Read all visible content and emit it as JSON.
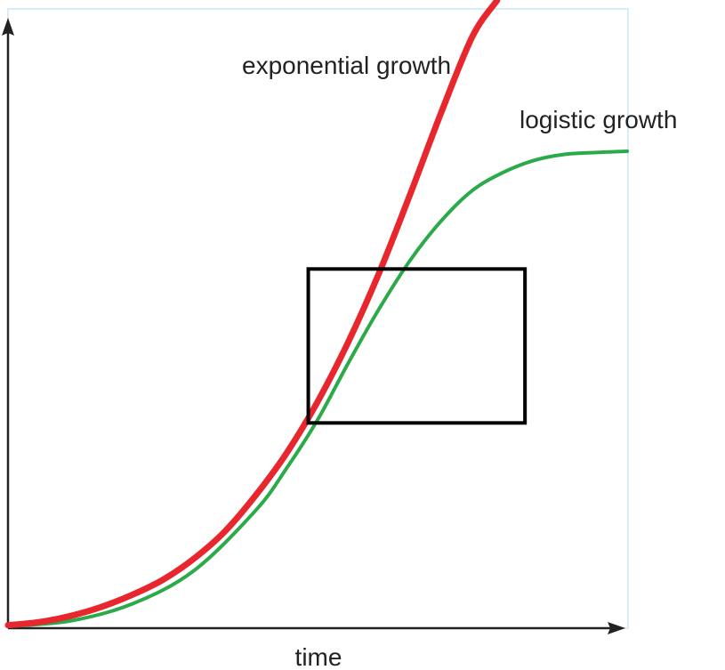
{
  "chart_data": {
    "type": "line",
    "title": "",
    "xlabel": "time",
    "ylabel": "",
    "xlim": [
      0,
      10
    ],
    "ylim": [
      0,
      10
    ],
    "grid": false,
    "legend": "none",
    "series": [
      {
        "name": "exponential growth",
        "color": "#e8262d",
        "x": [
          0,
          0.5,
          1,
          1.5,
          2,
          2.5,
          3,
          3.5,
          4,
          4.5,
          5,
          5.5,
          6,
          6.5,
          7,
          7.5,
          7.9
        ],
        "y": [
          0.05,
          0.1,
          0.2,
          0.35,
          0.55,
          0.8,
          1.15,
          1.6,
          2.2,
          2.9,
          3.75,
          4.75,
          5.9,
          7.2,
          8.55,
          9.8,
          10.4
        ]
      },
      {
        "name": "logistic growth",
        "color": "#2baa4a",
        "x": [
          0,
          1,
          2,
          3,
          4,
          4.5,
          5,
          5.5,
          6,
          6.5,
          7,
          7.5,
          8,
          8.5,
          9,
          9.5,
          10
        ],
        "y": [
          0.03,
          0.12,
          0.4,
          0.95,
          1.95,
          2.65,
          3.45,
          4.4,
          5.3,
          6.1,
          6.75,
          7.25,
          7.55,
          7.75,
          7.85,
          7.88,
          7.9
        ]
      }
    ],
    "box": {
      "x0": 4.85,
      "x1": 8.35,
      "y0": 3.4,
      "y1": 5.95
    }
  },
  "colors": {
    "axis": "#222222",
    "box": "#000000",
    "frame": "#d6ecfb"
  }
}
